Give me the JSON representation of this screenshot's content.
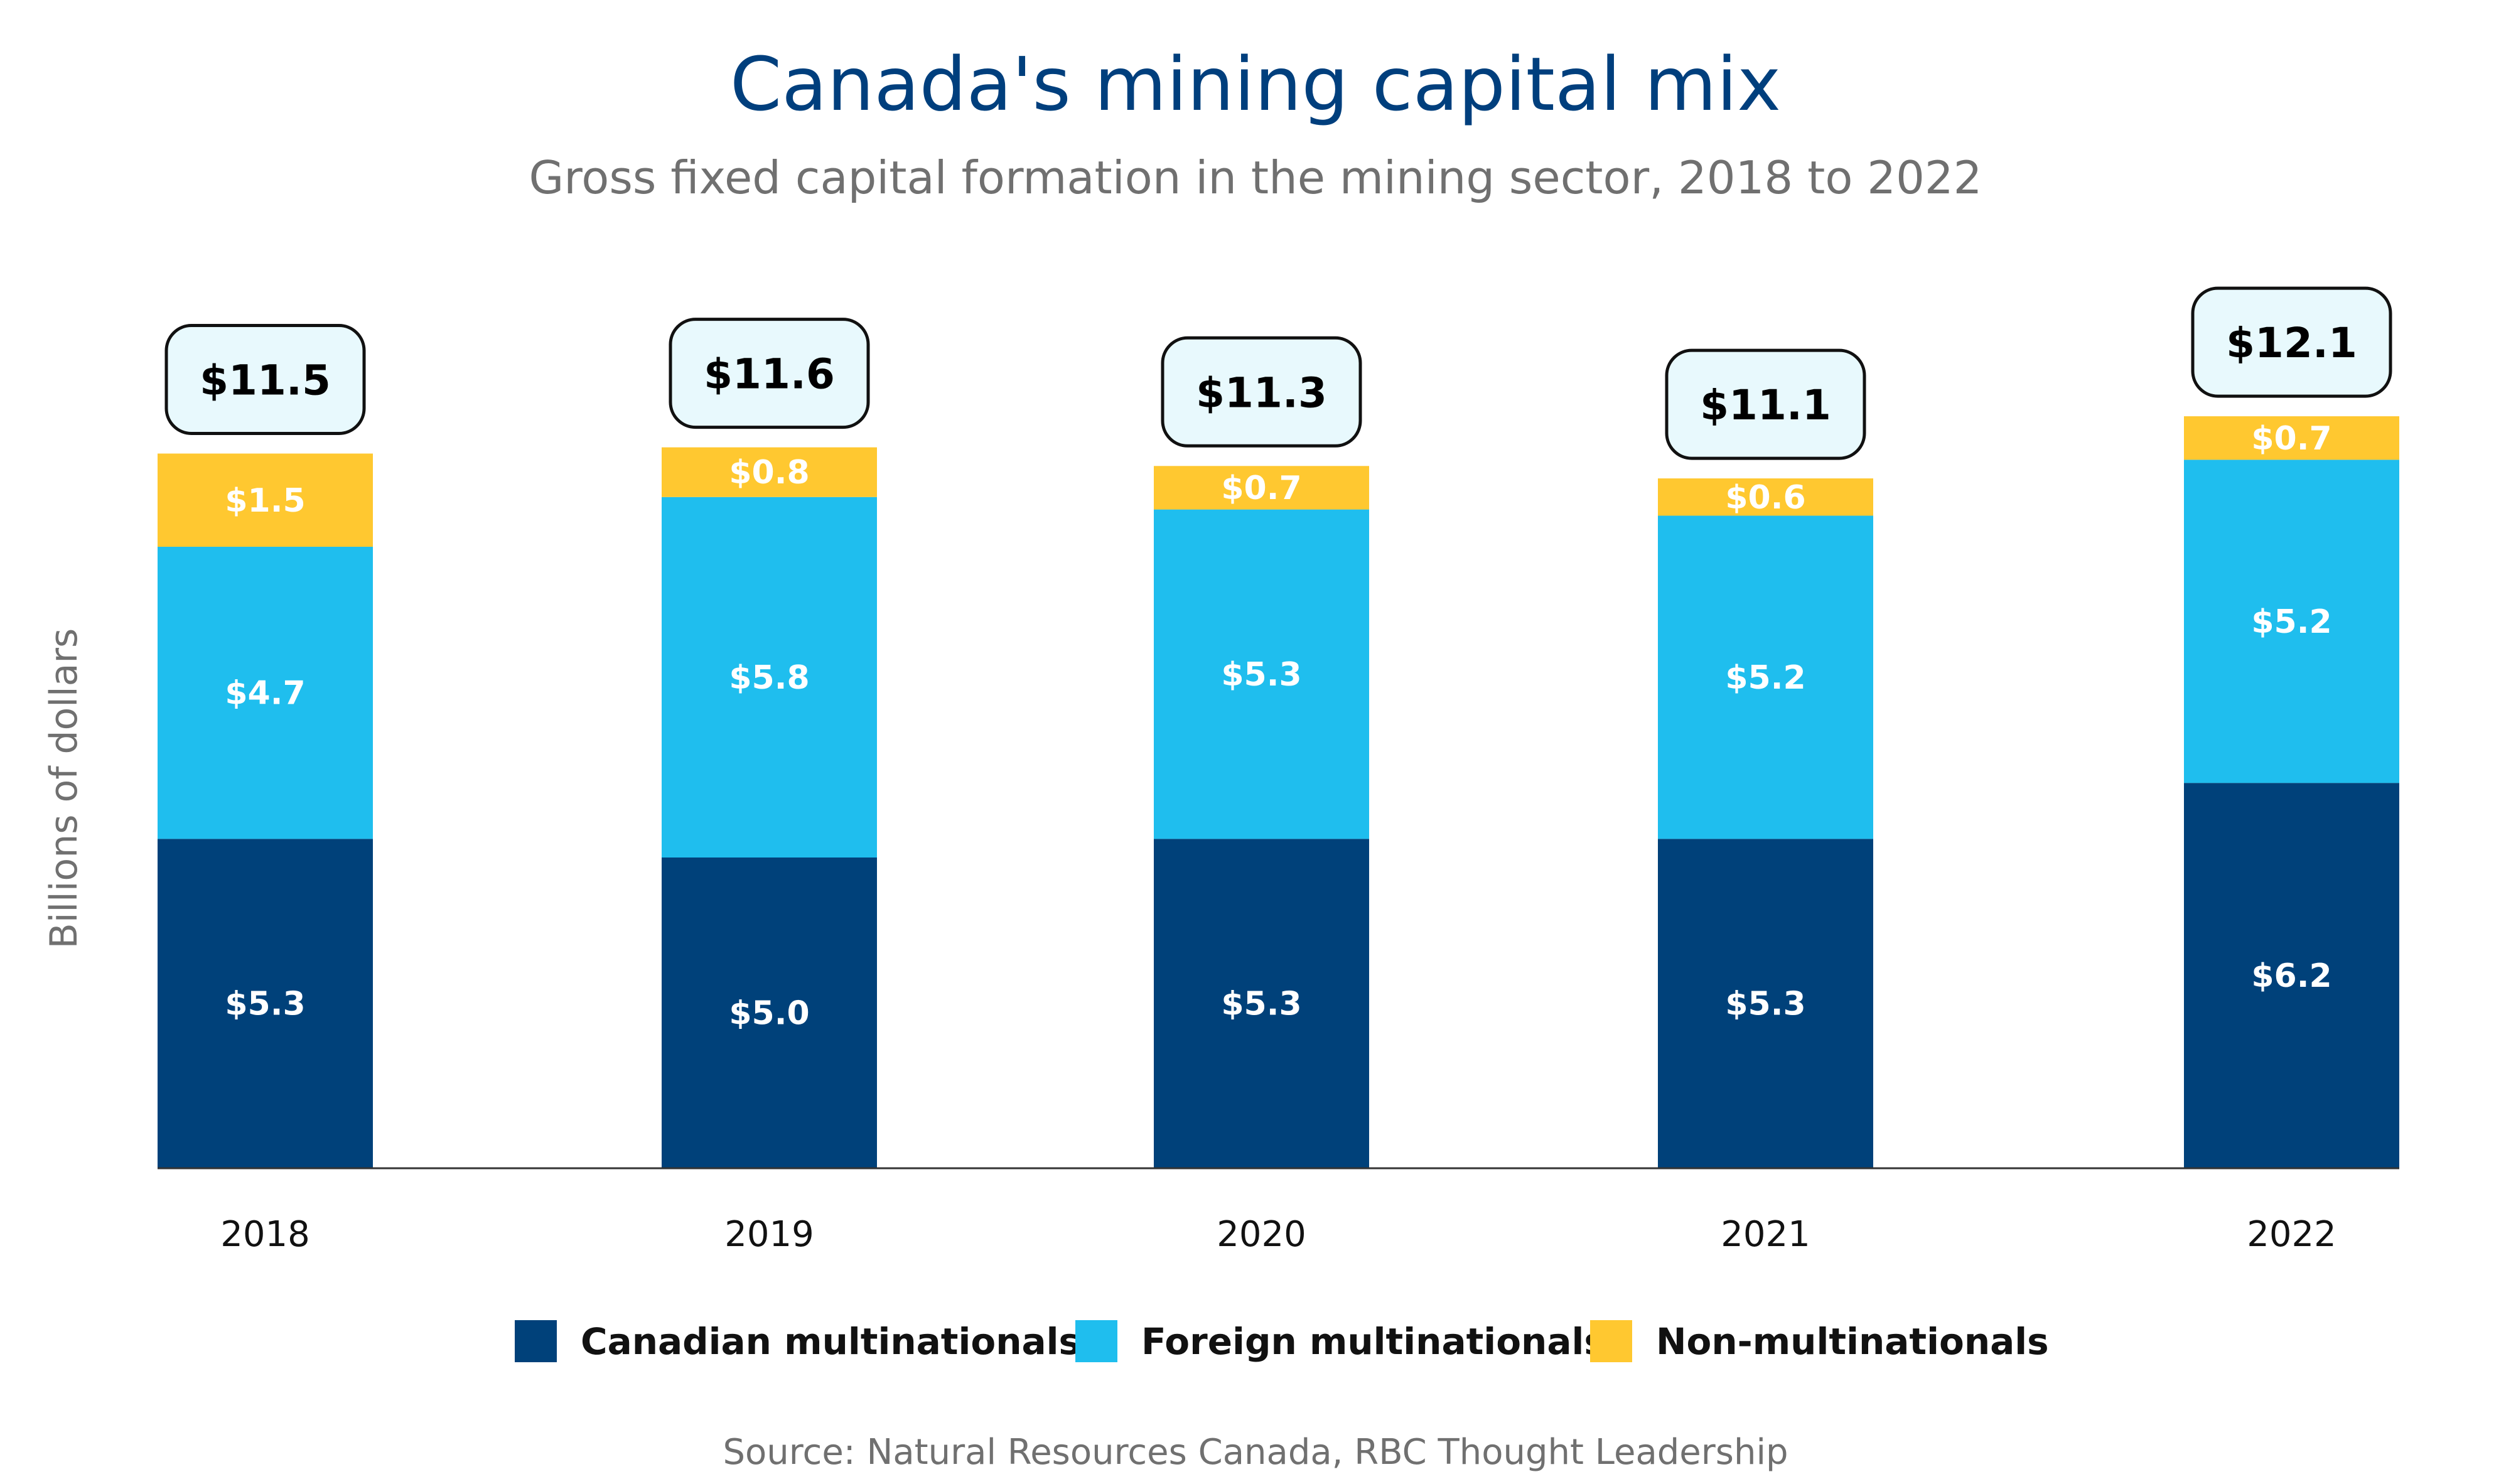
{
  "chart_data": {
    "type": "bar",
    "stacked": true,
    "title": "Canada's mining capital mix",
    "subtitle": "Gross fixed capital formation in the mining sector, 2018 to 2022",
    "xlabel": "",
    "ylabel": "Billions of dollars",
    "categories": [
      "2018",
      "2019",
      "2020",
      "2021",
      "2022"
    ],
    "series": [
      {
        "name": "Canadian multinationals",
        "color": "#00417a",
        "values": [
          5.3,
          5.0,
          5.3,
          5.3,
          6.2
        ],
        "labels": [
          "$5.3",
          "$5.0",
          "$5.3",
          "$5.3",
          "$6.2"
        ]
      },
      {
        "name": "Foreign multinationals",
        "color": "#1fbeee",
        "values": [
          4.7,
          5.8,
          5.3,
          5.2,
          5.2
        ],
        "labels": [
          "$4.7",
          "$5.8",
          "$5.3",
          "$5.2",
          "$5.2"
        ]
      },
      {
        "name": "Non-multinationals",
        "color": "#ffc830",
        "values": [
          1.5,
          0.8,
          0.7,
          0.6,
          0.7
        ],
        "labels": [
          "$1.5",
          "$0.8",
          "$0.7",
          "$0.6",
          "$0.7"
        ]
      }
    ],
    "totals": [
      11.5,
      11.6,
      11.3,
      11.1,
      12.1
    ],
    "total_labels": [
      "$11.5",
      "$11.6",
      "$11.3",
      "$11.1",
      "$12.1"
    ],
    "total_box_color": "#e8f9fd",
    "legend_position": "bottom",
    "grid": false,
    "source": "Source: Natural Resources Canada, RBC Thought Leadership"
  }
}
